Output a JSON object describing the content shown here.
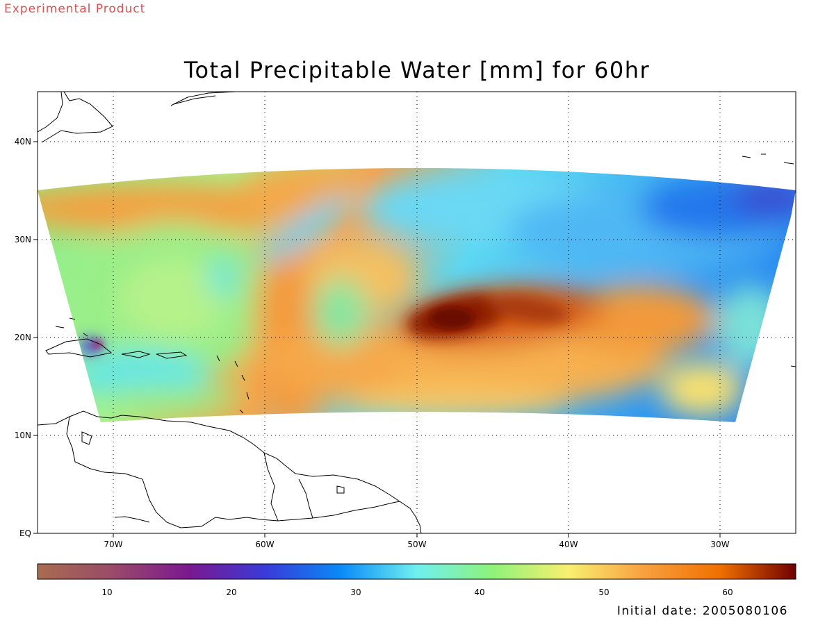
{
  "header": {
    "product_label": "Experimental Product",
    "title": "Total Precipitable Water [mm] for 60hr"
  },
  "map": {
    "lon_range": [
      -75,
      -25
    ],
    "lat_range": [
      0,
      45
    ],
    "lat_labels": [
      "EQ",
      "10N",
      "20N",
      "30N",
      "40N"
    ],
    "lon_labels": [
      "70W",
      "60W",
      "50W",
      "40W",
      "30W"
    ],
    "gridlines": "dotted"
  },
  "colorbar": {
    "range": [
      4.5,
      65.5
    ],
    "tick_labels": [
      "10",
      "20",
      "30",
      "40",
      "50",
      "60"
    ],
    "colors": [
      "#a86c50",
      "#9a4a6a",
      "#7a1890",
      "#3a3ad8",
      "#0a8af8",
      "#70f0f0",
      "#8ef27a",
      "#f8f070",
      "#f8a040",
      "#f07000",
      "#700000"
    ]
  },
  "footer": {
    "initial_date": "Initial date: 2005080106"
  }
}
